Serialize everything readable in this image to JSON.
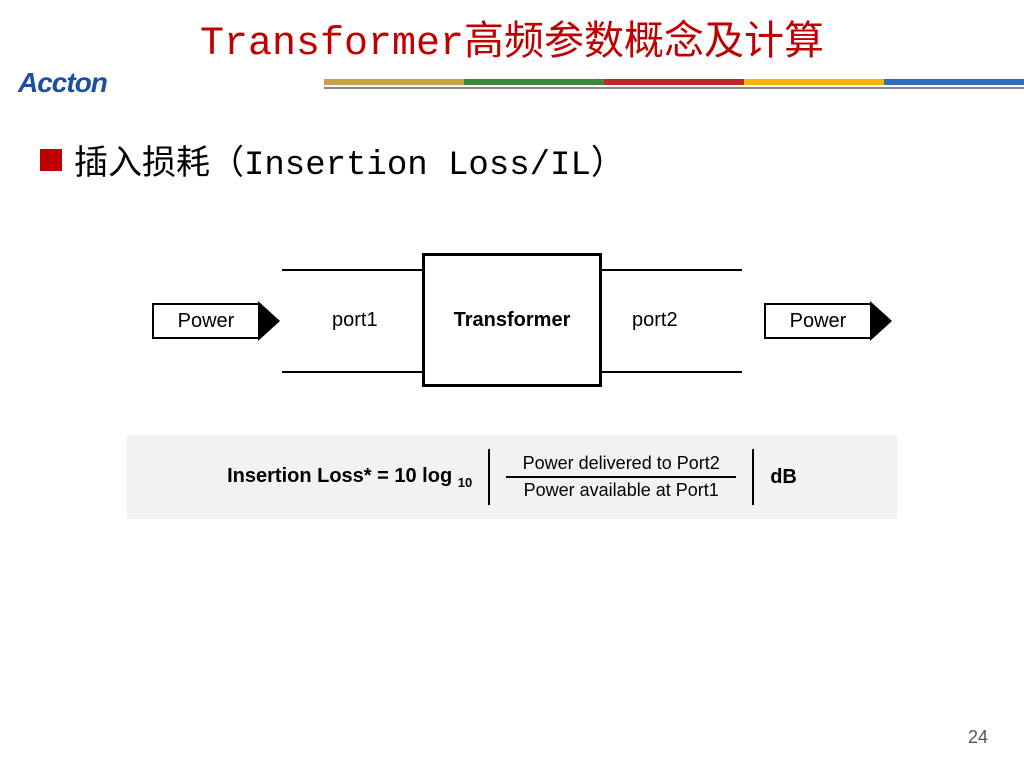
{
  "title": {
    "prefix": "Transformer",
    "suffix": "高频参数概念及计算",
    "color": "#c00000"
  },
  "logo": {
    "text": "Accton",
    "color": "#1f4ea1"
  },
  "stripes": {
    "colors": [
      "#c7a14a",
      "#3b8a3b",
      "#c02828",
      "#f2b705",
      "#2e6fb5"
    ],
    "rule_color": "#888888"
  },
  "bullet": {
    "marker_color": "#c00000",
    "text_cn": "插入损耗（",
    "text_en": "Insertion Loss/IL",
    "text_close": "）"
  },
  "diagram": {
    "power_in": "Power",
    "power_out": "Power",
    "port1": "port1",
    "port2": "port2",
    "center": "Transformer"
  },
  "formula": {
    "bg": "#f2f2f2",
    "lhs": "Insertion Loss* = 10 log",
    "lhs_sub": "10",
    "numerator": "Power delivered to Port2",
    "denominator": "Power available at Port1",
    "unit": "dB"
  },
  "page_number": "24"
}
